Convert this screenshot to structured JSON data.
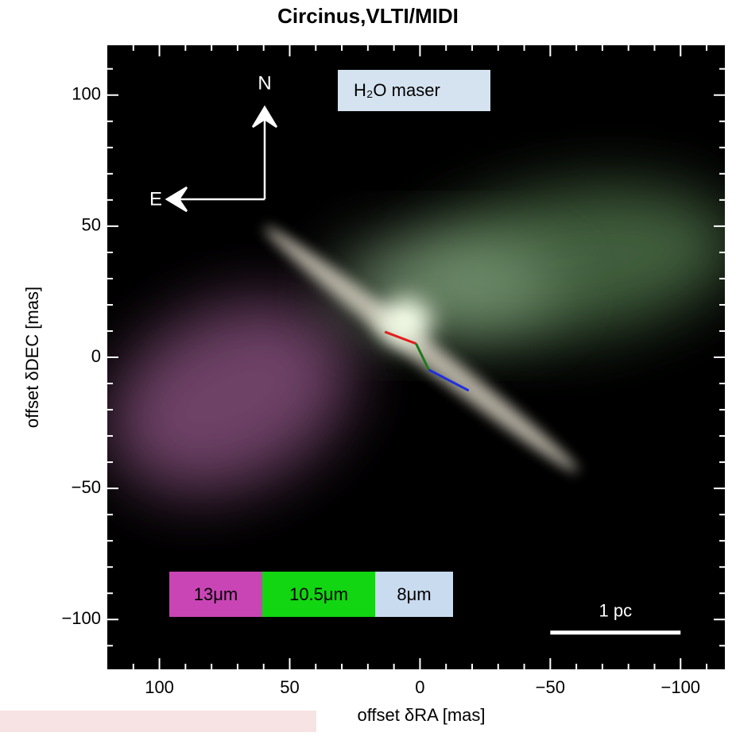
{
  "chart_data": {
    "type": "image",
    "title": "Circinus,VLTI/MIDI",
    "x_label": "offset δRA [mas]",
    "y_label": "offset δDEC [mas]",
    "xlim": [
      120,
      -117
    ],
    "ylim": [
      -119,
      119
    ],
    "xticks": [
      100,
      50,
      0,
      {
        "value": -50,
        "label": "−50"
      },
      {
        "value": -100,
        "label": "−100"
      }
    ],
    "yticks": [
      100,
      50,
      0,
      {
        "value": -50,
        "label": "−50"
      },
      {
        "value": -100,
        "label": "−100"
      }
    ],
    "minor_ticks": [
      -110,
      -90,
      -80,
      -70,
      -60,
      -40,
      -30,
      -20,
      -10,
      10,
      20,
      30,
      40,
      60,
      70,
      80,
      90,
      110
    ],
    "north_label": "N",
    "east_label": "E",
    "maser_label": "H₂O maser",
    "maser": {
      "x": [
        13.5,
        1.5,
        -3.4,
        -18.7
      ],
      "y": [
        9.7,
        5.2,
        -4.8,
        -12.7
      ],
      "colors": [
        "#e0201c",
        "#1e7a1e",
        "#1f2fe0"
      ]
    },
    "bands": [
      {
        "name": "13μm",
        "color": "#c945b5"
      },
      {
        "name": "10.5μm",
        "color": "#11d611"
      },
      {
        "name": "8μm",
        "color": "#c9dbef"
      }
    ],
    "scalebar": {
      "label": "1 pc",
      "x": [
        -50,
        -100
      ],
      "y": -105
    }
  }
}
